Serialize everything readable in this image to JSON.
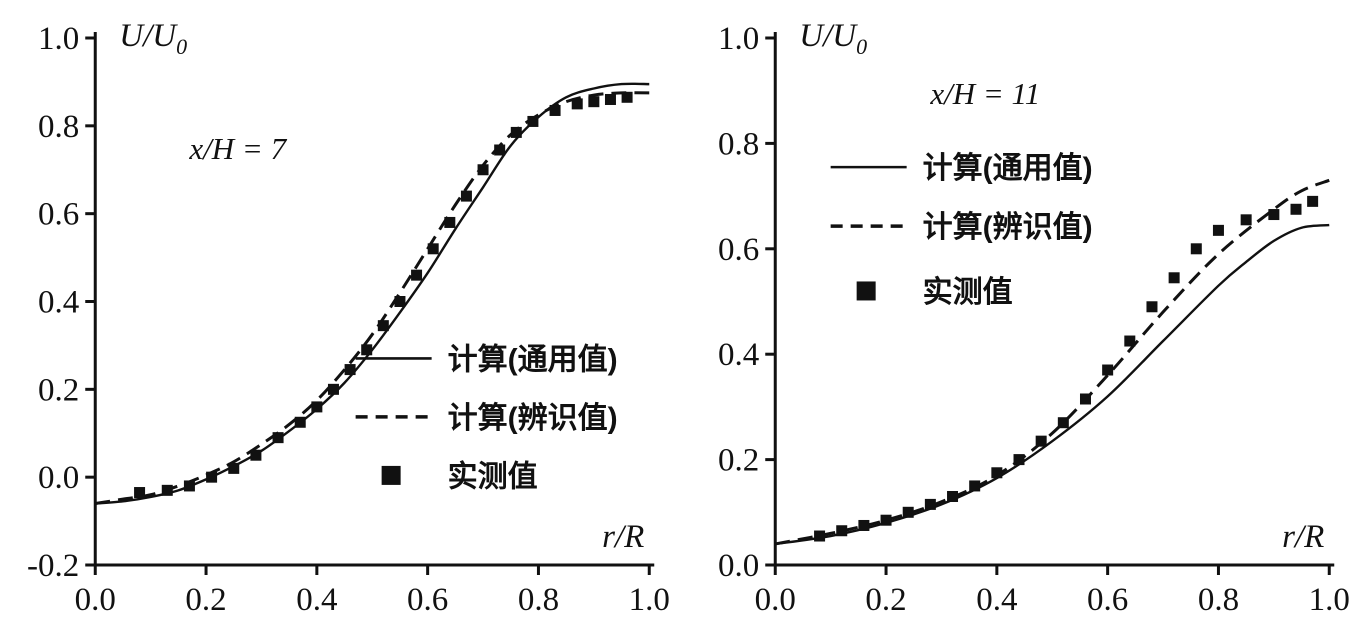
{
  "figure": {
    "background": "#ffffff",
    "ink_color": "#111111"
  },
  "chart_data": [
    {
      "type": "line",
      "title": "",
      "annotation": "x/H = 7",
      "ylabel": {
        "text": "U/U",
        "sub": "0"
      },
      "xlabel": "r/R",
      "xlim": [
        0.0,
        1.0
      ],
      "ylim": [
        -0.2,
        1.0
      ],
      "xticks": [
        0.0,
        0.2,
        0.4,
        0.6,
        0.8,
        1.0
      ],
      "yticks": [
        -0.2,
        0.0,
        0.2,
        0.4,
        0.6,
        0.8,
        1.0
      ],
      "grid": false,
      "legend_position": "inside-lower-right",
      "series": [
        {
          "name": "计算(通用值)",
          "style": "solid",
          "points": [
            [
              0.0,
              -0.06
            ],
            [
              0.05,
              -0.055
            ],
            [
              0.1,
              -0.045
            ],
            [
              0.15,
              -0.03
            ],
            [
              0.2,
              -0.005
            ],
            [
              0.25,
              0.025
            ],
            [
              0.3,
              0.06
            ],
            [
              0.35,
              0.105
            ],
            [
              0.4,
              0.155
            ],
            [
              0.45,
              0.215
            ],
            [
              0.5,
              0.29
            ],
            [
              0.55,
              0.375
            ],
            [
              0.6,
              0.465
            ],
            [
              0.65,
              0.565
            ],
            [
              0.7,
              0.66
            ],
            [
              0.75,
              0.755
            ],
            [
              0.8,
              0.82
            ],
            [
              0.85,
              0.865
            ],
            [
              0.9,
              0.885
            ],
            [
              0.95,
              0.895
            ],
            [
              1.0,
              0.895
            ]
          ]
        },
        {
          "name": "计算(辨识值)",
          "style": "dashed",
          "points": [
            [
              0.0,
              -0.06
            ],
            [
              0.05,
              -0.05
            ],
            [
              0.1,
              -0.04
            ],
            [
              0.15,
              -0.02
            ],
            [
              0.2,
              0.005
            ],
            [
              0.25,
              0.035
            ],
            [
              0.3,
              0.075
            ],
            [
              0.35,
              0.12
            ],
            [
              0.4,
              0.175
            ],
            [
              0.45,
              0.245
            ],
            [
              0.5,
              0.325
            ],
            [
              0.55,
              0.42
            ],
            [
              0.6,
              0.52
            ],
            [
              0.65,
              0.62
            ],
            [
              0.7,
              0.71
            ],
            [
              0.75,
              0.78
            ],
            [
              0.8,
              0.825
            ],
            [
              0.85,
              0.855
            ],
            [
              0.9,
              0.87
            ],
            [
              0.95,
              0.875
            ],
            [
              1.0,
              0.875
            ]
          ]
        },
        {
          "name": "实测值",
          "style": "squares",
          "points": [
            [
              0.08,
              -0.035
            ],
            [
              0.13,
              -0.03
            ],
            [
              0.17,
              -0.02
            ],
            [
              0.21,
              0.0
            ],
            [
              0.25,
              0.02
            ],
            [
              0.29,
              0.05
            ],
            [
              0.33,
              0.09
            ],
            [
              0.37,
              0.125
            ],
            [
              0.4,
              0.16
            ],
            [
              0.43,
              0.2
            ],
            [
              0.46,
              0.245
            ],
            [
              0.49,
              0.29
            ],
            [
              0.52,
              0.345
            ],
            [
              0.55,
              0.4
            ],
            [
              0.58,
              0.46
            ],
            [
              0.61,
              0.52
            ],
            [
              0.64,
              0.58
            ],
            [
              0.67,
              0.64
            ],
            [
              0.7,
              0.7
            ],
            [
              0.73,
              0.745
            ],
            [
              0.76,
              0.785
            ],
            [
              0.79,
              0.81
            ],
            [
              0.83,
              0.835
            ],
            [
              0.87,
              0.85
            ],
            [
              0.9,
              0.855
            ],
            [
              0.93,
              0.86
            ],
            [
              0.96,
              0.865
            ]
          ]
        }
      ],
      "layout": {
        "annotation_frac": [
          0.17,
          0.77
        ],
        "legend_frac": {
          "x": 0.47,
          "rows": [
            0.392,
            0.281,
            0.17
          ]
        }
      }
    },
    {
      "type": "line",
      "title": "",
      "annotation": "x/H = 11",
      "ylabel": {
        "text": "U/U",
        "sub": "0"
      },
      "xlabel": "r/R",
      "xlim": [
        0.0,
        1.0
      ],
      "ylim": [
        0.0,
        1.0
      ],
      "xticks": [
        0.0,
        0.2,
        0.4,
        0.6,
        0.8,
        1.0
      ],
      "yticks": [
        0.0,
        0.2,
        0.4,
        0.6,
        0.8,
        1.0
      ],
      "grid": false,
      "legend_position": "inside-upper-left",
      "series": [
        {
          "name": "计算(通用值)",
          "style": "solid",
          "points": [
            [
              0.0,
              0.04
            ],
            [
              0.1,
              0.055
            ],
            [
              0.2,
              0.08
            ],
            [
              0.3,
              0.115
            ],
            [
              0.4,
              0.165
            ],
            [
              0.5,
              0.235
            ],
            [
              0.6,
              0.32
            ],
            [
              0.7,
              0.425
            ],
            [
              0.8,
              0.53
            ],
            [
              0.85,
              0.575
            ],
            [
              0.9,
              0.615
            ],
            [
              0.95,
              0.64
            ],
            [
              1.0,
              0.645
            ]
          ]
        },
        {
          "name": "计算(辨识值)",
          "style": "dashed",
          "points": [
            [
              0.0,
              0.04
            ],
            [
              0.1,
              0.06
            ],
            [
              0.2,
              0.085
            ],
            [
              0.3,
              0.12
            ],
            [
              0.4,
              0.17
            ],
            [
              0.5,
              0.25
            ],
            [
              0.6,
              0.36
            ],
            [
              0.7,
              0.48
            ],
            [
              0.8,
              0.59
            ],
            [
              0.9,
              0.675
            ],
            [
              0.95,
              0.71
            ],
            [
              1.0,
              0.73
            ]
          ]
        },
        {
          "name": "实测值",
          "style": "squares",
          "points": [
            [
              0.08,
              0.055
            ],
            [
              0.12,
              0.065
            ],
            [
              0.16,
              0.075
            ],
            [
              0.2,
              0.085
            ],
            [
              0.24,
              0.1
            ],
            [
              0.28,
              0.115
            ],
            [
              0.32,
              0.13
            ],
            [
              0.36,
              0.15
            ],
            [
              0.4,
              0.175
            ],
            [
              0.44,
              0.2
            ],
            [
              0.48,
              0.235
            ],
            [
              0.52,
              0.27
            ],
            [
              0.56,
              0.315
            ],
            [
              0.6,
              0.37
            ],
            [
              0.64,
              0.425
            ],
            [
              0.68,
              0.49
            ],
            [
              0.72,
              0.545
            ],
            [
              0.76,
              0.6
            ],
            [
              0.8,
              0.635
            ],
            [
              0.85,
              0.655
            ],
            [
              0.9,
              0.665
            ],
            [
              0.94,
              0.675
            ],
            [
              0.97,
              0.69
            ]
          ]
        }
      ],
      "layout": {
        "annotation_frac": [
          0.28,
          0.875
        ],
        "legend_frac": {
          "x": 0.1,
          "rows": [
            0.755,
            0.643,
            0.52
          ]
        }
      }
    }
  ]
}
